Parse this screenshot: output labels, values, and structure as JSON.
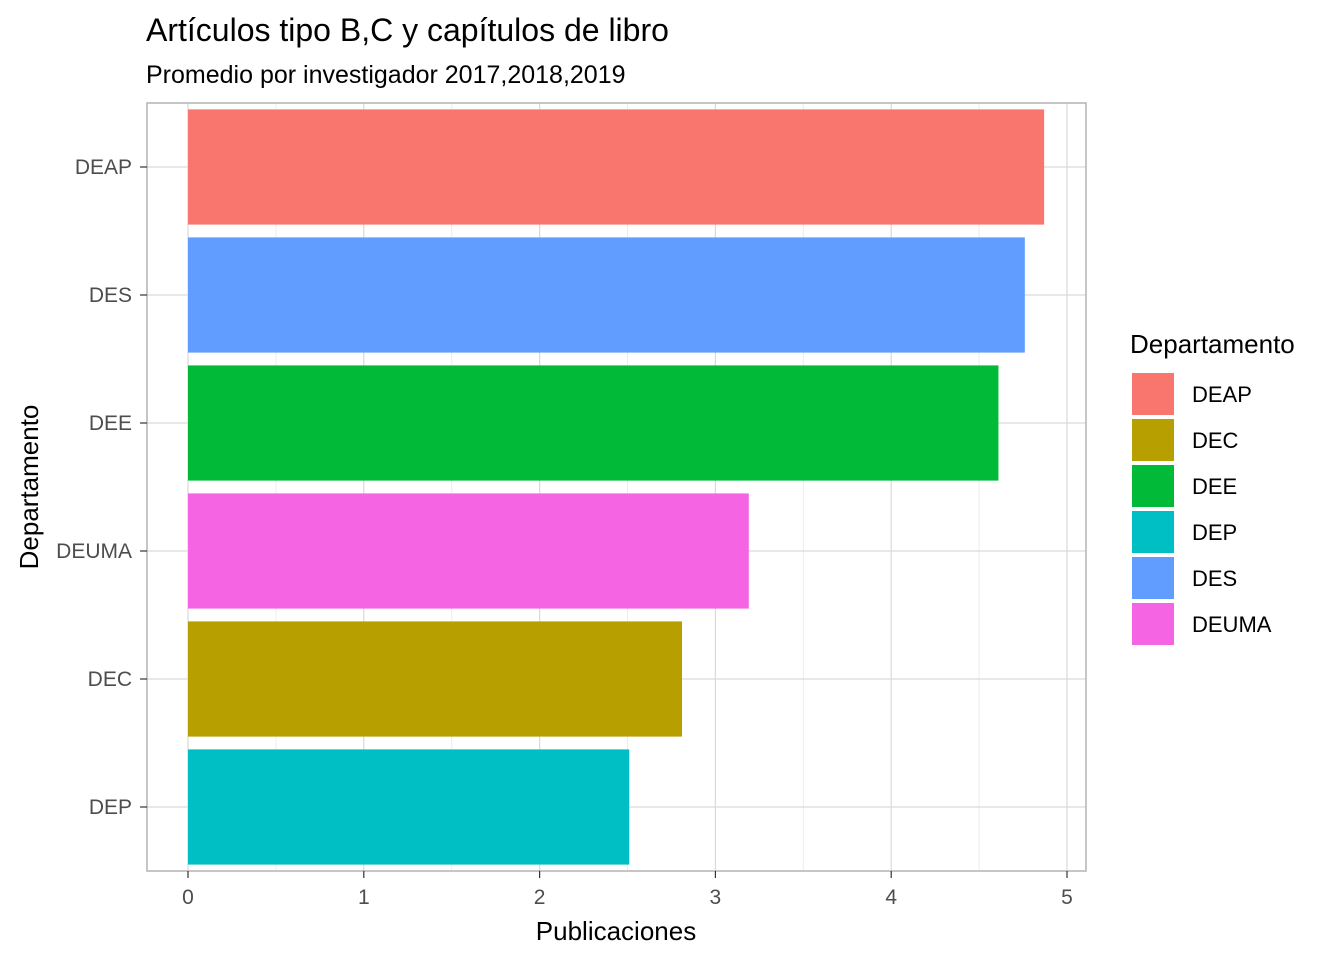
{
  "chart_data": {
    "type": "bar",
    "orientation": "horizontal",
    "title": "Artículos tipo B,C y capítulos de libro",
    "subtitle": "Promedio por investigador 2017,2018,2019",
    "xlabel": "Publicaciones",
    "ylabel": "Departamento",
    "xlim": [
      0,
      5
    ],
    "x_ticks": [
      "0",
      "1",
      "2",
      "3",
      "4",
      "5"
    ],
    "categories": [
      "DEAP",
      "DES",
      "DEE",
      "DEUMA",
      "DEC",
      "DEP"
    ],
    "values": [
      4.87,
      4.76,
      4.61,
      3.19,
      2.81,
      2.51
    ],
    "colors": [
      "#F8766D",
      "#619CFF",
      "#00BA38",
      "#F564E3",
      "#B79F00",
      "#00BFC4"
    ],
    "grid": true,
    "legend": {
      "title": "Departamento",
      "position": "right",
      "items": [
        {
          "label": "DEAP",
          "color": "#F8766D"
        },
        {
          "label": "DEC",
          "color": "#B79F00"
        },
        {
          "label": "DEE",
          "color": "#00BA38"
        },
        {
          "label": "DEP",
          "color": "#00BFC4"
        },
        {
          "label": "DES",
          "color": "#619CFF"
        },
        {
          "label": "DEUMA",
          "color": "#F564E3"
        }
      ]
    }
  }
}
